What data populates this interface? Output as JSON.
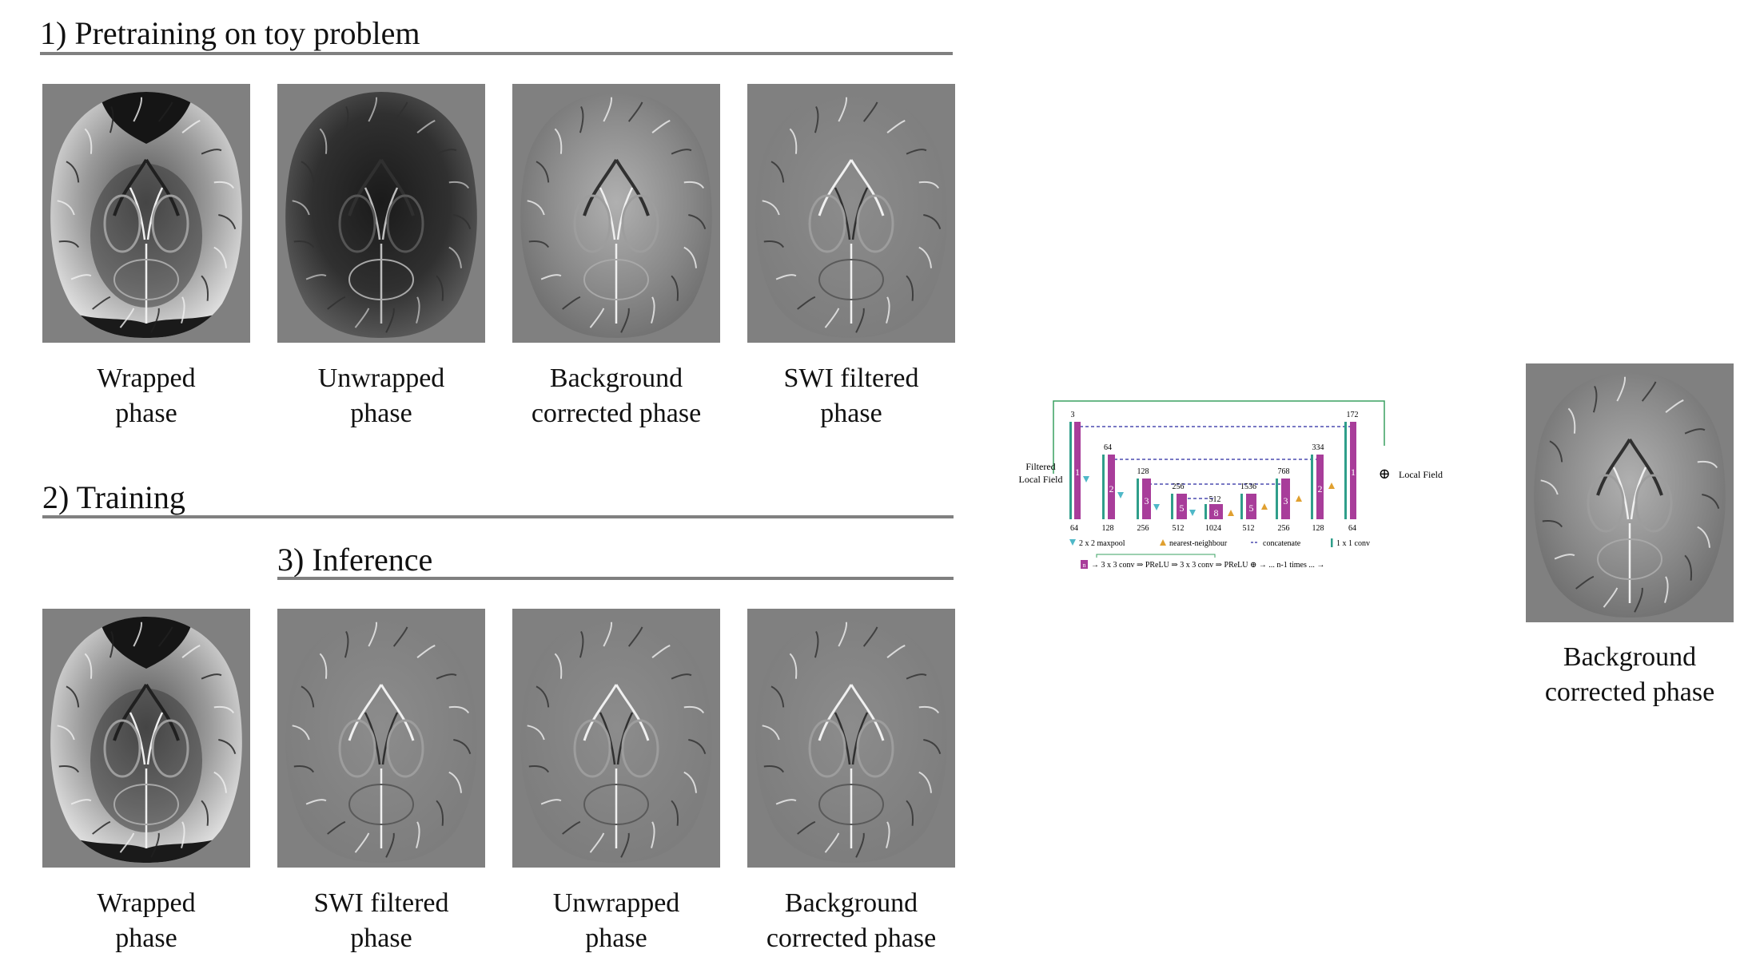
{
  "sections": {
    "pretraining": "1) Pretraining on toy problem",
    "training": "2) Training",
    "inference": "3) Inference"
  },
  "row1": [
    {
      "line1": "Wrapped",
      "line2": "phase",
      "kind": "wrapped"
    },
    {
      "line1": "Unwrapped",
      "line2": "phase",
      "kind": "unwrapped"
    },
    {
      "line1": "Background",
      "line2": "corrected phase",
      "kind": "background"
    },
    {
      "line1": "SWI filtered",
      "line2": "phase",
      "kind": "swi"
    }
  ],
  "row2": [
    {
      "line1": "Wrapped",
      "line2": "phase",
      "kind": "wrapped"
    },
    {
      "line1": "SWI filtered",
      "line2": "phase",
      "kind": "swi"
    },
    {
      "line1": "Unwrapped",
      "line2": "phase",
      "kind": "swi"
    },
    {
      "line1": "Background",
      "line2": "corrected phase",
      "kind": "swi"
    }
  ],
  "output": {
    "line1": "Background",
    "line2": "corrected phase",
    "kind": "background"
  },
  "unet": {
    "input_label_1": "Filtered",
    "input_label_2": "Local Field",
    "output_label": "Local Field",
    "top_numbers": [
      "3",
      "64",
      "128",
      "256",
      "512",
      "1536",
      "768",
      "334",
      "172"
    ],
    "bottom_numbers": [
      "64",
      "128",
      "256",
      "512",
      "1024",
      "512",
      "256",
      "128",
      "64"
    ],
    "block_numbers": [
      "1",
      "2",
      "3",
      "5",
      "8",
      "5",
      "3",
      "2",
      "1"
    ],
    "legend": {
      "maxpool": "2 x 2 maxpool",
      "upsample": "nearest-neighbour",
      "concat": "concatenate",
      "conv1x1": "1 x 1 conv",
      "block": "n",
      "block_desc": "→ 3 x 3 conv ⇒ PReLU ⇒ 3 x 3 conv ⇒ PReLU ⊕ → ... n-1 times ... →"
    },
    "colors": {
      "teal": "#2f9e8a",
      "magenta": "#a83d9a",
      "dash": "#4b4bb0",
      "orange": "#e0a030",
      "cyan": "#4fb8c8",
      "green": "#3aa060"
    }
  }
}
